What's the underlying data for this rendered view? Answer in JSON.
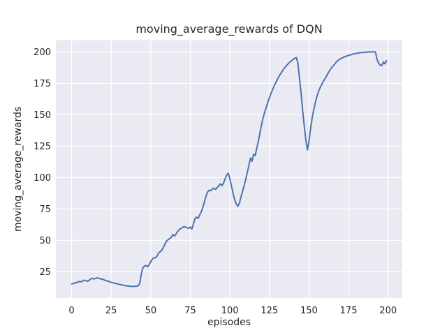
{
  "colors": {
    "figure_background": "#ffffff",
    "axes_background": "#eaeaf2",
    "grid": "#ffffff",
    "line": "#4c72b0",
    "text": "#262626"
  },
  "chart_data": {
    "type": "line",
    "title": "moving_average_rewards of DQN",
    "xlabel": "episodes",
    "ylabel": "moving_average_rewards",
    "legend_position": "none",
    "grid": true,
    "style": "seaborn-darkgrid",
    "x_ticks": [
      0,
      25,
      50,
      75,
      100,
      125,
      150,
      175,
      200
    ],
    "y_ticks": [
      25,
      50,
      75,
      100,
      125,
      150,
      175,
      200
    ],
    "xlim": [
      -9.95,
      208.95
    ],
    "ylim": [
      3.96,
      209.34
    ],
    "x_start": 0,
    "x_step": 1,
    "series": [
      {
        "name": "moving_average_rewards",
        "color": "#4c72b0",
        "values": [
          15.3,
          15.6,
          16.0,
          16.3,
          16.8,
          17.2,
          16.9,
          17.6,
          18.3,
          17.9,
          17.4,
          18.1,
          19.2,
          19.8,
          19.2,
          19.6,
          20.1,
          19.9,
          19.4,
          19.1,
          18.8,
          18.2,
          17.9,
          17.5,
          17.0,
          16.6,
          16.2,
          15.9,
          15.6,
          15.3,
          15.0,
          14.7,
          14.4,
          14.1,
          13.9,
          13.7,
          13.5,
          13.4,
          13.3,
          13.3,
          13.4,
          13.5,
          13.8,
          15.5,
          23.0,
          28.0,
          29.5,
          30.0,
          29.0,
          30.5,
          33.0,
          35.0,
          36.2,
          36.0,
          37.5,
          40.0,
          41.0,
          42.0,
          44.5,
          47.0,
          49.5,
          50.5,
          51.5,
          52.5,
          54.5,
          53.5,
          55.0,
          57.0,
          58.5,
          59.5,
          60.0,
          61.0,
          60.5,
          60.0,
          59.5,
          60.5,
          59.0,
          63.0,
          67.5,
          68.5,
          67.5,
          70.5,
          73.0,
          76.5,
          81.0,
          85.5,
          88.5,
          90.0,
          89.5,
          91.0,
          91.5,
          90.5,
          92.0,
          93.5,
          95.0,
          93.5,
          95.5,
          99.0,
          102.0,
          103.5,
          99.0,
          93.5,
          87.5,
          82.5,
          79.0,
          77.0,
          79.5,
          84.5,
          89.0,
          93.5,
          98.5,
          104.0,
          109.5,
          115.5,
          113.0,
          118.5,
          117.5,
          123.5,
          129.0,
          135.5,
          142.0,
          147.5,
          152.0,
          156.0,
          160.0,
          163.5,
          167.0,
          170.0,
          173.0,
          175.5,
          178.0,
          180.5,
          182.5,
          184.5,
          186.5,
          188.0,
          189.5,
          190.8,
          192.0,
          193.0,
          194.0,
          195.0,
          195.5,
          191.0,
          179.0,
          167.0,
          153.0,
          141.0,
          130.0,
          122.0,
          129.0,
          139.0,
          147.5,
          154.0,
          159.5,
          164.5,
          168.5,
          171.5,
          174.0,
          176.5,
          178.5,
          180.5,
          183.0,
          185.0,
          187.0,
          188.5,
          190.0,
          191.5,
          192.8,
          193.8,
          194.6,
          195.3,
          195.9,
          196.4,
          196.8,
          197.2,
          197.6,
          198.0,
          198.3,
          198.6,
          198.9,
          199.1,
          199.3,
          199.5,
          199.6,
          199.7,
          199.8,
          199.9,
          200.0,
          200.0,
          200.0,
          200.0,
          200.0,
          194.0,
          191.0,
          189.5,
          189.0,
          192.0,
          190.5,
          193.0
        ]
      }
    ]
  }
}
